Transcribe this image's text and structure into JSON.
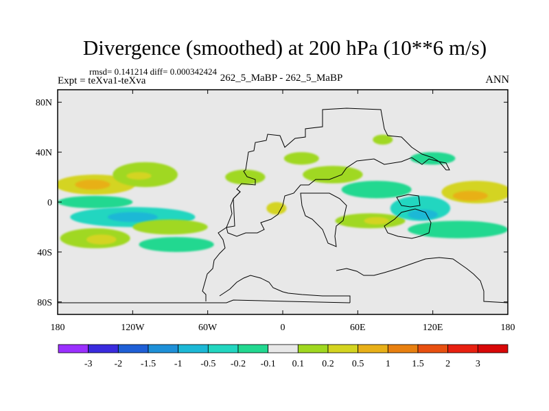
{
  "chart_data": {
    "type": "heatmap",
    "title": "Divergence (smoothed) at 200 hPa (10**6 m/s)",
    "stats_text": "rmsd= 0.141214  diff= 0.000342424",
    "left_label": "Expt = teXva1-teXva",
    "center_label": "262_5_MaBP - 262_5_MaBP",
    "right_label": "ANN",
    "x_ticks": [
      {
        "value": -180,
        "label": "180"
      },
      {
        "value": -120,
        "label": "120W"
      },
      {
        "value": -60,
        "label": "60W"
      },
      {
        "value": 0,
        "label": "0"
      },
      {
        "value": 60,
        "label": "60E"
      },
      {
        "value": 120,
        "label": "120E"
      },
      {
        "value": 180,
        "label": "180"
      }
    ],
    "y_ticks": [
      {
        "value": 80,
        "label": "80N"
      },
      {
        "value": 40,
        "label": "40N"
      },
      {
        "value": 0,
        "label": "0"
      },
      {
        "value": -40,
        "label": "40S"
      },
      {
        "value": -80,
        "label": "80S"
      }
    ],
    "xlim": [
      -180,
      180
    ],
    "ylim": [
      -90,
      90
    ],
    "colorbar": {
      "labels": [
        "-3",
        "-2",
        "-1.5",
        "-1",
        "-0.5",
        "-0.2",
        "-0.1",
        "0.1",
        "0.2",
        "0.5",
        "1",
        "1.5",
        "2",
        "3"
      ],
      "colors": [
        "#9b30ff",
        "#3a2bde",
        "#1f5fd6",
        "#1e90d8",
        "#1cb8d6",
        "#22d6c0",
        "#22d890",
        "#e8e8e8",
        "#a0d820",
        "#d4d420",
        "#e8b018",
        "#e88010",
        "#e85010",
        "#e82010",
        "#d80808"
      ]
    },
    "anomaly_regions": [
      {
        "name": "west-pacific-north-band",
        "lon": -150,
        "lat": 14,
        "rlon": 32,
        "rlat": 8,
        "color": "#d4d420"
      },
      {
        "name": "west-pacific-north-core",
        "lon": -152,
        "lat": 14,
        "rlon": 14,
        "rlat": 4,
        "color": "#e8b018"
      },
      {
        "name": "central-pacific-north",
        "lon": -110,
        "lat": 22,
        "rlon": 26,
        "rlat": 10,
        "color": "#a0d820"
      },
      {
        "name": "central-pacific-north-core",
        "lon": -115,
        "lat": 21,
        "rlon": 10,
        "rlat": 3,
        "color": "#d4d420"
      },
      {
        "name": "pacific-equatorial-west",
        "lon": -150,
        "lat": 0,
        "rlon": 30,
        "rlat": 5,
        "color": "#22d890"
      },
      {
        "name": "pacific-south-band",
        "lon": -120,
        "lat": -12,
        "rlon": 50,
        "rlat": 8,
        "color": "#22d6c0"
      },
      {
        "name": "pacific-south-core",
        "lon": -120,
        "lat": -12,
        "rlon": 20,
        "rlat": 4,
        "color": "#1cb8d6"
      },
      {
        "name": "south-pacific-convergence",
        "lon": -90,
        "lat": -20,
        "rlon": 30,
        "rlat": 6,
        "color": "#a0d820"
      },
      {
        "name": "southern-band-west",
        "lon": -150,
        "lat": -29,
        "rlon": 28,
        "rlat": 8,
        "color": "#a0d820"
      },
      {
        "name": "southern-band-west-core",
        "lon": -145,
        "lat": -30,
        "rlon": 12,
        "rlat": 4,
        "color": "#d4d420"
      },
      {
        "name": "southern-band-mid",
        "lon": -85,
        "lat": -34,
        "rlon": 30,
        "rlat": 6,
        "color": "#22d890"
      },
      {
        "name": "atlantic-north",
        "lon": -30,
        "lat": 20,
        "rlon": 16,
        "rlat": 6,
        "color": "#a0d820"
      },
      {
        "name": "atlantic-equatorial",
        "lon": -5,
        "lat": -5,
        "rlon": 8,
        "rlat": 5,
        "color": "#d4d420"
      },
      {
        "name": "africa-north",
        "lon": 15,
        "lat": 35,
        "rlon": 14,
        "rlat": 5,
        "color": "#a0d820"
      },
      {
        "name": "africa-mid",
        "lon": 40,
        "lat": 22,
        "rlon": 24,
        "rlat": 7,
        "color": "#a0d820"
      },
      {
        "name": "indian-ocean-north",
        "lon": 75,
        "lat": 10,
        "rlon": 28,
        "rlat": 7,
        "color": "#22d890"
      },
      {
        "name": "indian-ocean-south",
        "lon": 70,
        "lat": -15,
        "rlon": 28,
        "rlat": 6,
        "color": "#a0d820"
      },
      {
        "name": "indian-ocean-south-core",
        "lon": 75,
        "lat": -15,
        "rlon": 10,
        "rlat": 3,
        "color": "#d4d420"
      },
      {
        "name": "maritime-continent",
        "lon": 110,
        "lat": -5,
        "rlon": 24,
        "rlat": 10,
        "color": "#22d6c0"
      },
      {
        "name": "maritime-continent-core",
        "lon": 112,
        "lat": -10,
        "rlon": 12,
        "rlat": 4,
        "color": "#1cb8d6"
      },
      {
        "name": "east-pacific-north",
        "lon": 155,
        "lat": 8,
        "rlon": 28,
        "rlat": 9,
        "color": "#d4d420"
      },
      {
        "name": "east-pacific-north-core",
        "lon": 150,
        "lat": 5,
        "rlon": 14,
        "rlat": 4,
        "color": "#e8b018"
      },
      {
        "name": "east-pacific-south",
        "lon": 140,
        "lat": -22,
        "rlon": 40,
        "rlat": 7,
        "color": "#22d890"
      },
      {
        "name": "siberia-north",
        "lon": 80,
        "lat": 50,
        "rlon": 8,
        "rlat": 4,
        "color": "#a0d820"
      },
      {
        "name": "east-asia-north",
        "lon": 120,
        "lat": 35,
        "rlon": 18,
        "rlat": 5,
        "color": "#22d890"
      }
    ]
  }
}
